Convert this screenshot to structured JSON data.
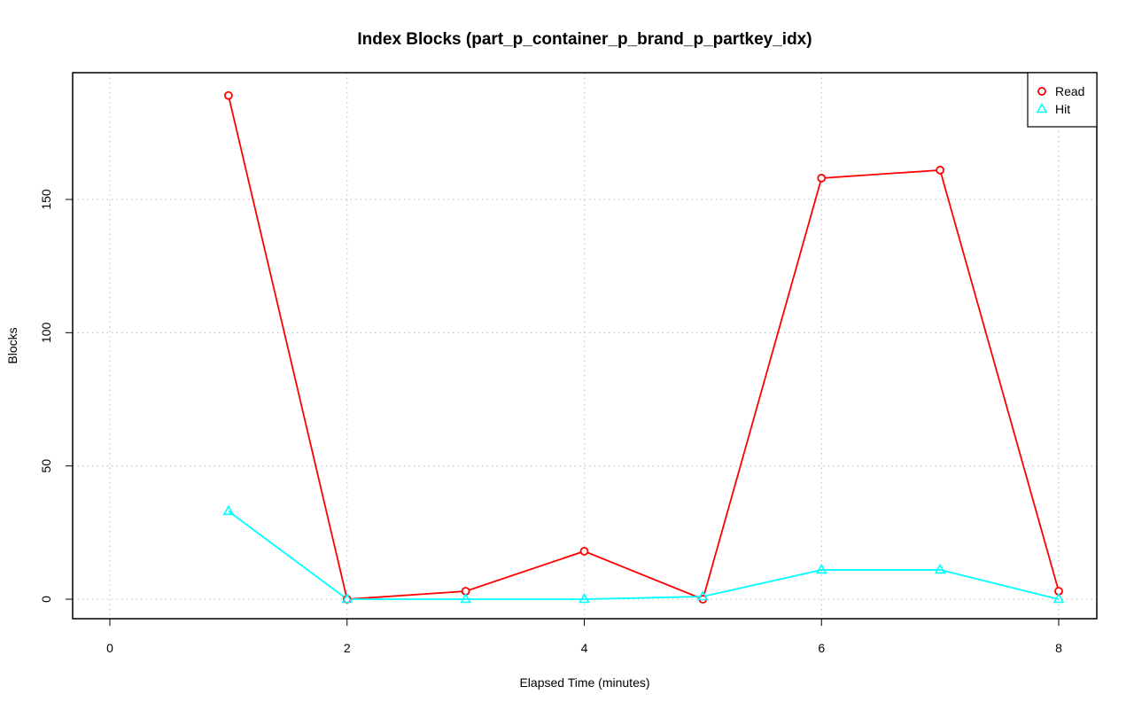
{
  "chart_data": {
    "type": "line",
    "title": "Index Blocks (part_p_container_p_brand_p_partkey_idx)",
    "xlabel": "Elapsed Time (minutes)",
    "ylabel": "Blocks",
    "x_ticks": [
      "0",
      "2",
      "4",
      "6",
      "8"
    ],
    "y_ticks": [
      "0",
      "50",
      "100",
      "150"
    ],
    "xlim": [
      0,
      8
    ],
    "ylim": [
      0,
      190
    ],
    "grid": true,
    "legend_position": "top-right",
    "x": [
      1,
      2,
      3,
      4,
      5,
      6,
      7,
      8
    ],
    "series": [
      {
        "name": "Read",
        "color": "#ff0000",
        "marker": "circle",
        "values": [
          189,
          0,
          3,
          18,
          0,
          158,
          161,
          3
        ]
      },
      {
        "name": "Hit",
        "color": "#00ffff",
        "marker": "triangle",
        "values": [
          33,
          0,
          0,
          0,
          1,
          11,
          11,
          0
        ]
      }
    ]
  }
}
